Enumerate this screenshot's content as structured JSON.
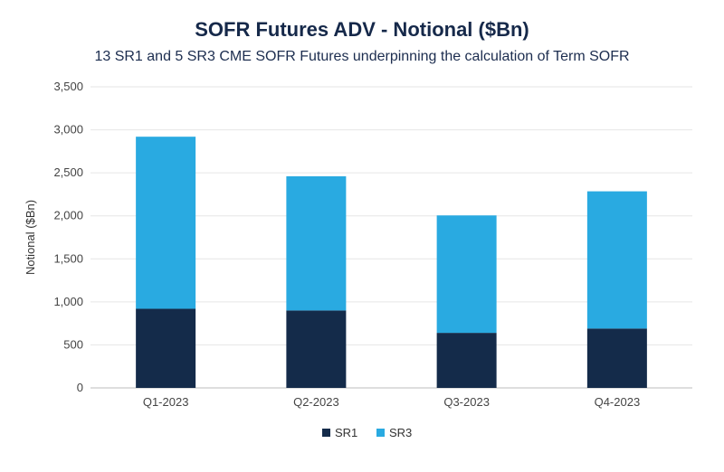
{
  "chart_data": {
    "type": "bar",
    "stacked": true,
    "title": "SOFR Futures ADV - Notional ($Bn)",
    "subtitle": "13 SR1 and 5 SR3 CME SOFR Futures underpinning the calculation of Term SOFR",
    "xlabel": "",
    "ylabel": "Notional ($Bn)",
    "ylim": [
      0,
      3500
    ],
    "yticks": [
      0,
      500,
      1000,
      1500,
      2000,
      2500,
      3000,
      3500
    ],
    "ytick_labels": [
      "0",
      "500",
      "1,000",
      "1,500",
      "2,000",
      "2,500",
      "3,000",
      "3,500"
    ],
    "grid": true,
    "legend_position": "bottom",
    "categories": [
      "Q1-2023",
      "Q2-2023",
      "Q3-2023",
      "Q4-2023"
    ],
    "series": [
      {
        "name": "SR1",
        "color": "#142b4a",
        "values": [
          920,
          900,
          640,
          690
        ]
      },
      {
        "name": "SR3",
        "color": "#29aae1",
        "values": [
          2000,
          1560,
          1365,
          1595
        ]
      }
    ]
  }
}
